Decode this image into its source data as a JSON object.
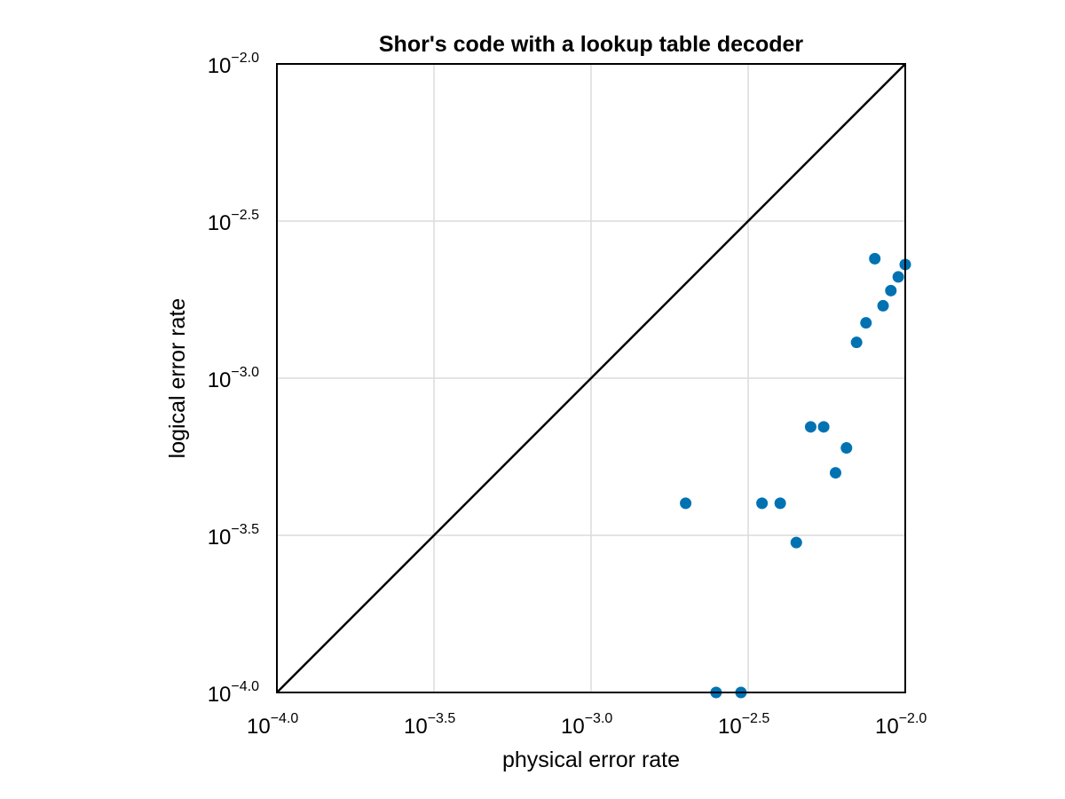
{
  "chart_data": {
    "type": "scatter",
    "title": "Shor's code with a lookup table decoder",
    "xlabel": "physical error rate",
    "ylabel": "logical error rate",
    "xscale": "log10",
    "yscale": "log10",
    "xlim": [
      0.0001,
      0.01
    ],
    "ylim": [
      0.0001,
      0.01
    ],
    "grid": true,
    "x_ticks": [
      {
        "base": "10",
        "exp": "−4.0"
      },
      {
        "base": "10",
        "exp": "−3.5"
      },
      {
        "base": "10",
        "exp": "−3.0"
      },
      {
        "base": "10",
        "exp": "−2.5"
      },
      {
        "base": "10",
        "exp": "−2.0"
      }
    ],
    "y_ticks": [
      {
        "base": "10",
        "exp": "−4.0"
      },
      {
        "base": "10",
        "exp": "−3.5"
      },
      {
        "base": "10",
        "exp": "−3.0"
      },
      {
        "base": "10",
        "exp": "−2.5"
      },
      {
        "base": "10",
        "exp": "−2.0"
      }
    ],
    "reference_line": {
      "x": [
        0.0001,
        0.01
      ],
      "y": [
        0.0001,
        0.01
      ],
      "color": "#000000"
    },
    "series": [
      {
        "color": "#0072b2",
        "points": [
          {
            "x": 0.002,
            "y": 0.0004
          },
          {
            "x": 0.0025,
            "y": 0.0001
          },
          {
            "x": 0.003,
            "y": 0.0001
          },
          {
            "x": 0.0035,
            "y": 0.0004
          },
          {
            "x": 0.004,
            "y": 0.0004
          },
          {
            "x": 0.0045,
            "y": 0.0003
          },
          {
            "x": 0.005,
            "y": 0.0007
          },
          {
            "x": 0.0055,
            "y": 0.0007
          },
          {
            "x": 0.006,
            "y": 0.0005
          },
          {
            "x": 0.0065,
            "y": 0.0006
          },
          {
            "x": 0.007,
            "y": 0.0013
          },
          {
            "x": 0.0075,
            "y": 0.0015
          },
          {
            "x": 0.008,
            "y": 0.0024
          },
          {
            "x": 0.0085,
            "y": 0.0017
          },
          {
            "x": 0.009,
            "y": 0.0019
          },
          {
            "x": 0.0095,
            "y": 0.0021
          },
          {
            "x": 0.01,
            "y": 0.0023
          }
        ]
      }
    ]
  }
}
